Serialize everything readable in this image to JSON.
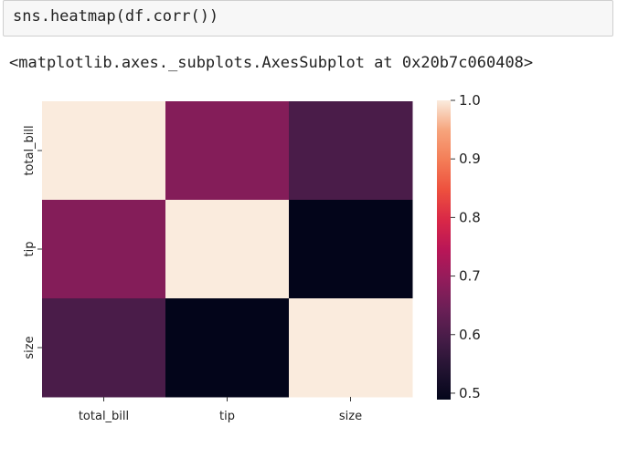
{
  "cell": {
    "input_code": "sns.heatmap(df.corr())",
    "output_repr": "<matplotlib.axes._subplots.AxesSubplot at 0x20b7c060408>"
  },
  "chart_data": {
    "type": "heatmap",
    "x_labels": [
      "total_bill",
      "tip",
      "size"
    ],
    "y_labels": [
      "total_bill",
      "tip",
      "size"
    ],
    "values": [
      [
        1.0,
        0.676,
        0.598
      ],
      [
        0.676,
        1.0,
        0.489
      ],
      [
        0.598,
        0.489,
        1.0
      ]
    ],
    "colorbar": {
      "min": 0.489,
      "max": 1.0,
      "ticks": [
        "1.0",
        "0.9",
        "0.8",
        "0.7",
        "0.6",
        "0.5"
      ],
      "tick_values": [
        1.0,
        0.9,
        0.8,
        0.7,
        0.6,
        0.5
      ],
      "colormap": "rocket"
    },
    "title": "",
    "xlabel": "",
    "ylabel": ""
  }
}
